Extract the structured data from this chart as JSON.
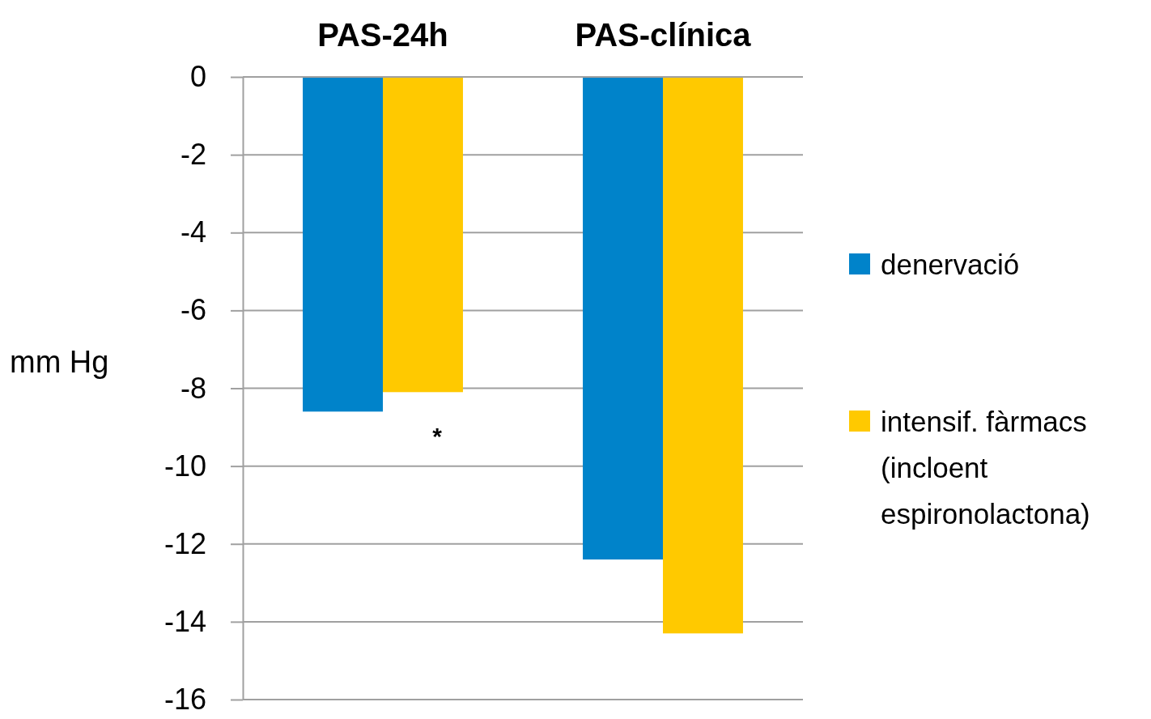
{
  "chart_data": {
    "type": "bar",
    "categories": [
      "PAS-24h",
      "PAS-clínica"
    ],
    "series": [
      {
        "name": "denervació",
        "color": "#0083ca",
        "values": [
          -8.6,
          -12.4
        ]
      },
      {
        "name": "intensif. fàrmacs (incloent espironolactona)",
        "color": "#ffc900",
        "values": [
          -8.1,
          -14.3
        ]
      }
    ],
    "ylabel": "mm Hg",
    "ylim": [
      -16,
      0
    ],
    "yticks": [
      0,
      -2,
      -4,
      -6,
      -8,
      -10,
      -12,
      -14,
      -16
    ],
    "grid": "y",
    "legend": "right",
    "annotations": [
      "*"
    ]
  }
}
